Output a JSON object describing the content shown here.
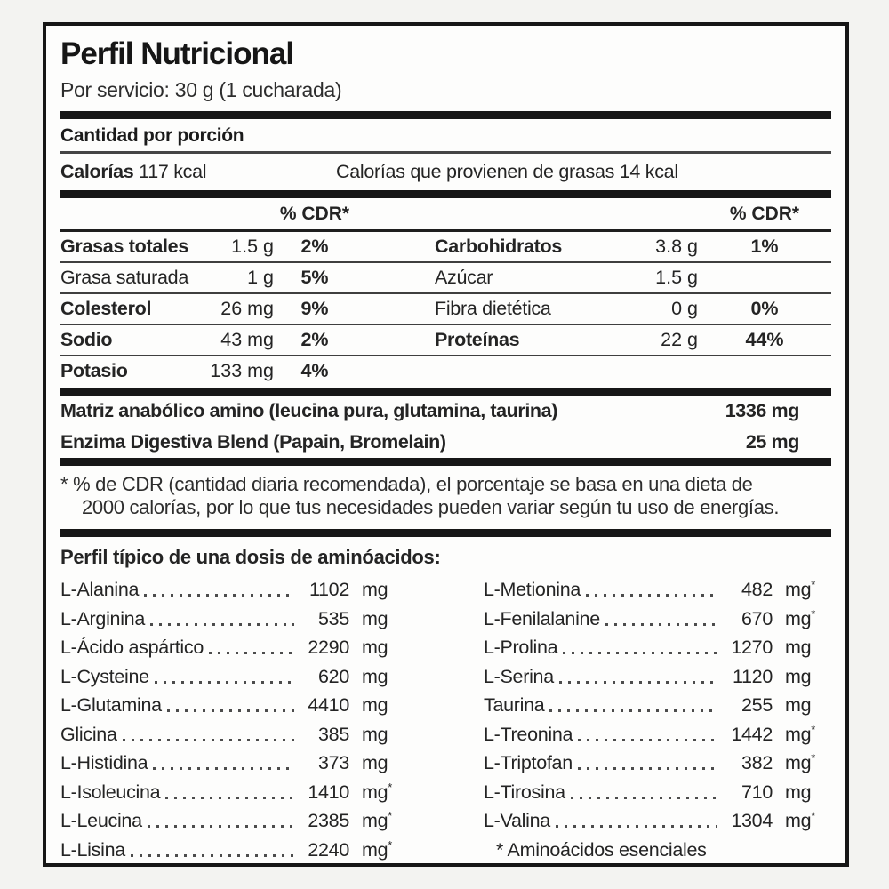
{
  "colors": {
    "bar": "#171717",
    "border": "#161616",
    "label_bg": "#fdfdfc",
    "page_bg": "#f3f3f1",
    "text": "#242424"
  },
  "label": {
    "title": "Perfil Nutricional",
    "serving": "Por servicio: 30 g (1 cucharada)",
    "amount_per_serving": "Cantidad por porción",
    "calories_label": "Calorías",
    "calories_value": "117 kcal",
    "calories_fat": "Calorías que provienen de grasas 14 kcal",
    "cdr_header": "% CDR*",
    "nutrients_left": [
      {
        "name": "Grasas totales",
        "bold": true,
        "amount": "1.5 g",
        "pct": "2%"
      },
      {
        "name": "Grasa saturada",
        "bold": false,
        "amount": "1 g",
        "pct": "5%"
      },
      {
        "name": "Colesterol",
        "bold": true,
        "amount": "26 mg",
        "pct": "9%"
      },
      {
        "name": "Sodio",
        "bold": true,
        "amount": "43 mg",
        "pct": "2%"
      },
      {
        "name": "Potasio",
        "bold": true,
        "amount": "133 mg",
        "pct": "4%"
      }
    ],
    "nutrients_right": [
      {
        "name": "Carbohidratos",
        "bold": true,
        "amount": "3.8 g",
        "pct": "1%"
      },
      {
        "name": "Azúcar",
        "bold": false,
        "amount": "1.5 g",
        "pct": ""
      },
      {
        "name": "Fibra dietética",
        "bold": false,
        "amount": "0 g",
        "pct": "0%"
      },
      {
        "name": "Proteínas",
        "bold": true,
        "amount": "22 g",
        "pct": "44%"
      },
      {
        "name": "",
        "bold": false,
        "amount": "",
        "pct": ""
      }
    ],
    "blends": [
      {
        "name": "Matriz anabólico amino (leucina pura, glutamina, taurina)",
        "amount": "1336 mg"
      },
      {
        "name": "Enzima Digestiva Blend (Papain, Bromelain)",
        "amount": "25 mg"
      }
    ],
    "footnote_line1": "* % de CDR (cantidad diaria recomendada), el porcentaje se basa en una dieta de",
    "footnote_line2": "2000 calorías, por lo que tus necesidades pueden variar según tu uso de energías.",
    "amino_title": "Perfil típico de una dosis de aminóacidos:",
    "amino_unit": "mg",
    "amino_left": [
      {
        "name": "L-Alanina",
        "value": "1102",
        "essential": false
      },
      {
        "name": "L-Arginina",
        "value": "535",
        "essential": false
      },
      {
        "name": "L-Ácido aspártico",
        "value": "2290",
        "essential": false
      },
      {
        "name": "L-Cysteine",
        "value": "620",
        "essential": false
      },
      {
        "name": "L-Glutamina",
        "value": "4410",
        "essential": false
      },
      {
        "name": "Glicina",
        "value": "385",
        "essential": false
      },
      {
        "name": "L-Histidina",
        "value": "373",
        "essential": false
      },
      {
        "name": "L-Isoleucina",
        "value": "1410",
        "essential": true
      },
      {
        "name": "L-Leucina",
        "value": "2385",
        "essential": true
      },
      {
        "name": "L-Lisina",
        "value": "2240",
        "essential": true
      }
    ],
    "amino_right": [
      {
        "name": "L-Metionina",
        "value": "482",
        "essential": true
      },
      {
        "name": "L-Fenilalanine",
        "value": "670",
        "essential": true
      },
      {
        "name": "L-Prolina",
        "value": "1270",
        "essential": false
      },
      {
        "name": "L-Serina",
        "value": "1120",
        "essential": false
      },
      {
        "name": "Taurina",
        "value": "255",
        "essential": false
      },
      {
        "name": "L-Treonina",
        "value": "1442",
        "essential": true
      },
      {
        "name": "L-Triptofan",
        "value": "382",
        "essential": true
      },
      {
        "name": "L-Tirosina",
        "value": "710",
        "essential": false
      },
      {
        "name": "L-Valina",
        "value": "1304",
        "essential": true
      }
    ],
    "essential_note": "* Aminoácidos esenciales"
  }
}
